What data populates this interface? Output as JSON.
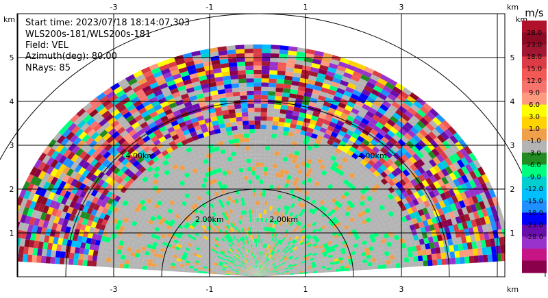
{
  "info": {
    "start_time": "Start time: 2023/07/18 18:14:07.303",
    "site": "WLS200s-181/WLS200s-181",
    "field": "Field: VEL",
    "azimuth": "Azimuth(deg): 80.00",
    "nrays": "NRays: 85"
  },
  "chart_data": {
    "type": "heatmap",
    "projection": "RHI-style polar cross-section",
    "x_unit": "km",
    "y_unit": "km",
    "xlim": [
      -4.0,
      4.0
    ],
    "ylim": [
      0.0,
      5.5
    ],
    "x_ticks": [
      -3,
      -1,
      1,
      3
    ],
    "x_tick_labels": [
      "-3",
      "-1",
      "1",
      "3"
    ],
    "y_ticks": [
      1,
      2,
      3,
      4,
      5
    ],
    "y_tick_labels": [
      "1",
      "2",
      "3",
      "4",
      "5"
    ],
    "grid": true,
    "range_rings_km": [
      2,
      4,
      6
    ],
    "range_ring_labels": [
      "2.00km",
      "4.00km"
    ],
    "max_range_km": 5.3,
    "elevation_span_deg": [
      4,
      176
    ],
    "colorbar": {
      "unit": "m/s",
      "tick_labels": [
        "28.0",
        "23.0",
        "18.0",
        "15.0",
        "12.0",
        "9.0",
        "6.0",
        "3.0",
        "1.0",
        "-1.0",
        "-3.0",
        "-6.0",
        "-9.0",
        "-12.0",
        "-15.0",
        "-18.0",
        "-23.0",
        "-28.0"
      ],
      "colors": [
        "#b2112b",
        "#8c0a24",
        "#a31733",
        "#dc3c46",
        "#f45a55",
        "#f7736e",
        "#ff9a7f",
        "#ffff00",
        "#ffd200",
        "#f0a04b",
        "#b4b4b4",
        "#228b22",
        "#00ff7f",
        "#00ced1",
        "#00bfff",
        "#1e90ff",
        "#0000ff",
        "#6a0dad",
        "#9932cc",
        "#c71585",
        "#8b004b"
      ]
    },
    "velocity_pattern": {
      "near_range_km": [
        0,
        1.8
      ],
      "near_values": [
        1.0,
        -1.0,
        -4.0,
        2.0
      ],
      "mid_range_km": [
        1.8,
        3.4
      ],
      "mid_values": [
        -1.0,
        0.0,
        -3.0,
        5.0
      ],
      "far_range_km": [
        3.4,
        5.3
      ],
      "far_values": "noise"
    }
  }
}
